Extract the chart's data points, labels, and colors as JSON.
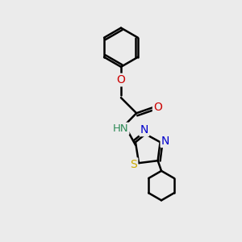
{
  "background_color": "#ebebeb",
  "bond_color": "#000000",
  "bond_width": 1.8,
  "figsize": [
    3.0,
    3.0
  ],
  "dpi": 100,
  "xlim": [
    0,
    10
  ],
  "ylim": [
    0,
    10
  ]
}
